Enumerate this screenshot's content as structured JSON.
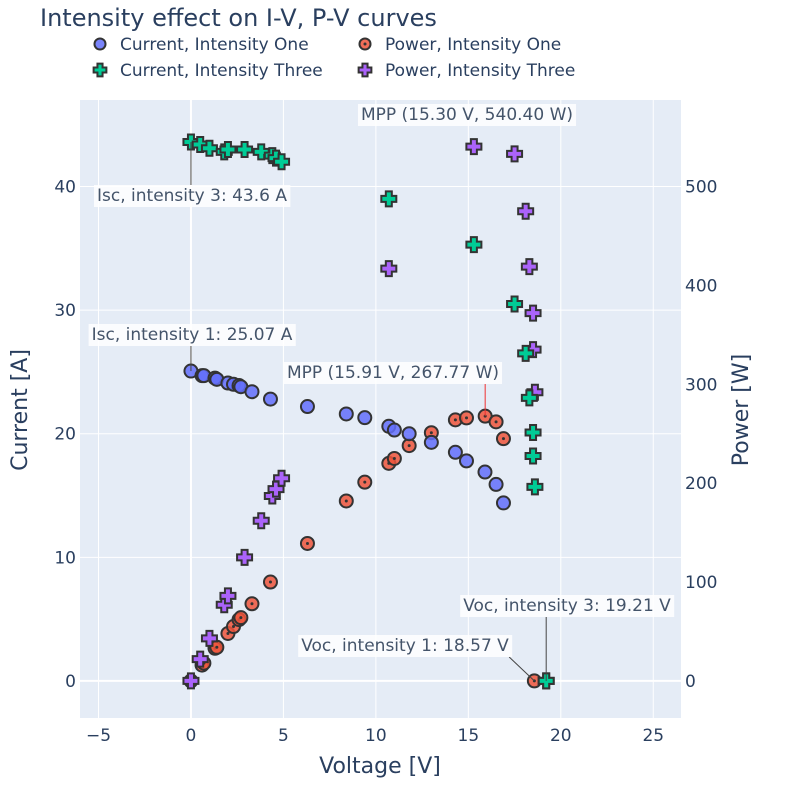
{
  "chart_data": {
    "type": "scatter",
    "title": "Intensity effect on I-V, P-V curves",
    "xlabel": "Voltage [V]",
    "ylabel": "Current [A]",
    "y2label": "Power [W]",
    "xlim": [
      -6,
      26.5
    ],
    "ylim": [
      -3,
      47
    ],
    "y2lim": [
      -37.5,
      587.5
    ],
    "xticks": [
      -5,
      0,
      5,
      10,
      15,
      20,
      25
    ],
    "yticks": [
      0,
      10,
      20,
      30,
      40
    ],
    "y2ticks": [
      0,
      100,
      200,
      300,
      400,
      500
    ],
    "grid": true,
    "legend_position": "top",
    "series": [
      {
        "name": "Current, Intensity One",
        "axis": "y",
        "marker": "circle",
        "color": "#636efa",
        "points": [
          [
            0,
            25.07
          ],
          [
            0.6,
            24.7
          ],
          [
            0.7,
            24.7
          ],
          [
            1.3,
            24.5
          ],
          [
            1.4,
            24.4
          ],
          [
            2,
            24.1
          ],
          [
            2.3,
            24
          ],
          [
            2.6,
            23.9
          ],
          [
            2.7,
            23.8
          ],
          [
            3.3,
            23.4
          ],
          [
            4.3,
            22.8
          ],
          [
            6.3,
            22.2
          ],
          [
            8.4,
            21.6
          ],
          [
            9.4,
            21.3
          ],
          [
            10.7,
            20.6
          ],
          [
            11,
            20.3
          ],
          [
            11.8,
            20
          ],
          [
            13,
            19.3
          ],
          [
            14.3,
            18.5
          ],
          [
            14.9,
            17.8
          ],
          [
            15.9,
            16.9
          ],
          [
            16.5,
            15.9
          ],
          [
            16.9,
            14.4
          ]
        ]
      },
      {
        "name": "Power, Intensity One",
        "axis": "y2",
        "marker": "circle-dot",
        "color": "#ef553b",
        "points": [
          [
            0,
            0
          ],
          [
            0.6,
            16
          ],
          [
            0.7,
            18
          ],
          [
            1.3,
            33
          ],
          [
            1.4,
            34
          ],
          [
            2,
            48
          ],
          [
            2.3,
            55
          ],
          [
            2.6,
            62
          ],
          [
            2.7,
            64
          ],
          [
            3.3,
            78
          ],
          [
            4.3,
            100
          ],
          [
            6.3,
            139
          ],
          [
            8.4,
            182
          ],
          [
            9.4,
            201
          ],
          [
            10.7,
            220
          ],
          [
            11,
            225
          ],
          [
            11.8,
            238
          ],
          [
            13,
            251
          ],
          [
            14.3,
            264
          ],
          [
            14.9,
            266
          ],
          [
            15.91,
            267.77
          ],
          [
            16.5,
            262
          ],
          [
            16.9,
            245
          ],
          [
            18.57,
            0
          ]
        ]
      },
      {
        "name": "Current, Intensity Three",
        "axis": "y",
        "marker": "cross",
        "color": "#00cc96",
        "points": [
          [
            0,
            43.6
          ],
          [
            0.5,
            43.4
          ],
          [
            1,
            43.1
          ],
          [
            1.8,
            42.8
          ],
          [
            2,
            43
          ],
          [
            2.9,
            43
          ],
          [
            3.8,
            42.8
          ],
          [
            4.4,
            42.5
          ],
          [
            4.6,
            42.3
          ],
          [
            4.9,
            42
          ],
          [
            10.7,
            39
          ],
          [
            15.3,
            35.3
          ],
          [
            17.5,
            30.5
          ],
          [
            18.1,
            26.5
          ],
          [
            18.3,
            22.9
          ],
          [
            18.5,
            20.1
          ],
          [
            18.5,
            18.2
          ],
          [
            18.6,
            15.7
          ],
          [
            19.21,
            0
          ]
        ]
      },
      {
        "name": "Power, Intensity Three",
        "axis": "y2",
        "marker": "cross",
        "color": "#ab63fa",
        "points": [
          [
            0,
            0
          ],
          [
            0.5,
            22
          ],
          [
            1,
            43
          ],
          [
            1.8,
            77
          ],
          [
            2,
            86
          ],
          [
            2.9,
            125
          ],
          [
            3.8,
            162
          ],
          [
            4.4,
            187
          ],
          [
            4.6,
            194
          ],
          [
            4.9,
            205
          ],
          [
            10.7,
            417
          ],
          [
            15.3,
            540.4
          ],
          [
            17.5,
            533
          ],
          [
            18.1,
            475
          ],
          [
            18.3,
            419
          ],
          [
            18.5,
            372
          ],
          [
            18.5,
            335
          ],
          [
            18.6,
            292
          ],
          [
            19.21,
            0
          ]
        ]
      }
    ],
    "annotations": [
      {
        "text": "Isc, intensity 3: 43.6 A",
        "x": 0,
        "y": 43.6,
        "axis": "y"
      },
      {
        "text": "Isc, intensity 1: 25.07 A",
        "x": 0,
        "y": 25.07,
        "axis": "y"
      },
      {
        "text": "MPP (15.30 V, 540.40 W)",
        "x": 15.3,
        "y": 540.4,
        "axis": "y2"
      },
      {
        "text": "MPP (15.91 V, 267.77 W)",
        "x": 15.91,
        "y": 267.77,
        "axis": "y2"
      },
      {
        "text": "Voc, intensity 3: 19.21 V",
        "x": 19.21,
        "y": 0,
        "axis": "y"
      },
      {
        "text": "Voc, intensity 1: 18.57 V",
        "x": 18.57,
        "y": 0,
        "axis": "y"
      }
    ]
  }
}
